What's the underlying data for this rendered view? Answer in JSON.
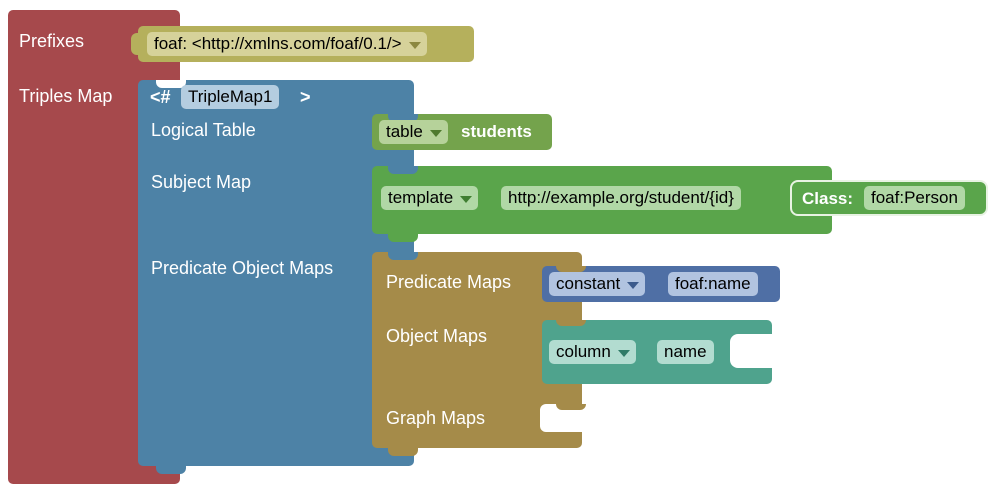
{
  "colors": {
    "triples_map": "#a6494c",
    "logical_source_block": "#4d82a6",
    "table_block": "#74a34c",
    "subject_block": "#5aa54b",
    "predicate_object_block": "#a58b49",
    "predicate_block": "#4f6fa5",
    "object_block": "#4fa38d",
    "prefix_block": "#b5b05c"
  },
  "prefixes": {
    "label": "Prefixes",
    "value": "foaf: <http://xmlns.com/foaf/0.1/>"
  },
  "triples_map": {
    "label": "Triples Map",
    "open_tag": "<#",
    "name": "TripleMap1",
    "close_tag": ">",
    "logical_table_label": "Logical Table",
    "subject_map_label": "Subject Map",
    "predicate_object_maps_label": "Predicate Object Maps"
  },
  "logical_table": {
    "type": "table",
    "value": "students"
  },
  "subject_map": {
    "type": "template",
    "value": "http://example.org/student/{id}",
    "class_label": "Class:",
    "class_value": "foaf:Person"
  },
  "predicate_object_map": {
    "predicate_maps_label": "Predicate Maps",
    "object_maps_label": "Object Maps",
    "graph_maps_label": "Graph Maps"
  },
  "predicate_map": {
    "type": "constant",
    "value": "foaf:name"
  },
  "object_map": {
    "type": "column",
    "value": "name"
  },
  "icons": [
    "dropdown-arrow-icon"
  ]
}
